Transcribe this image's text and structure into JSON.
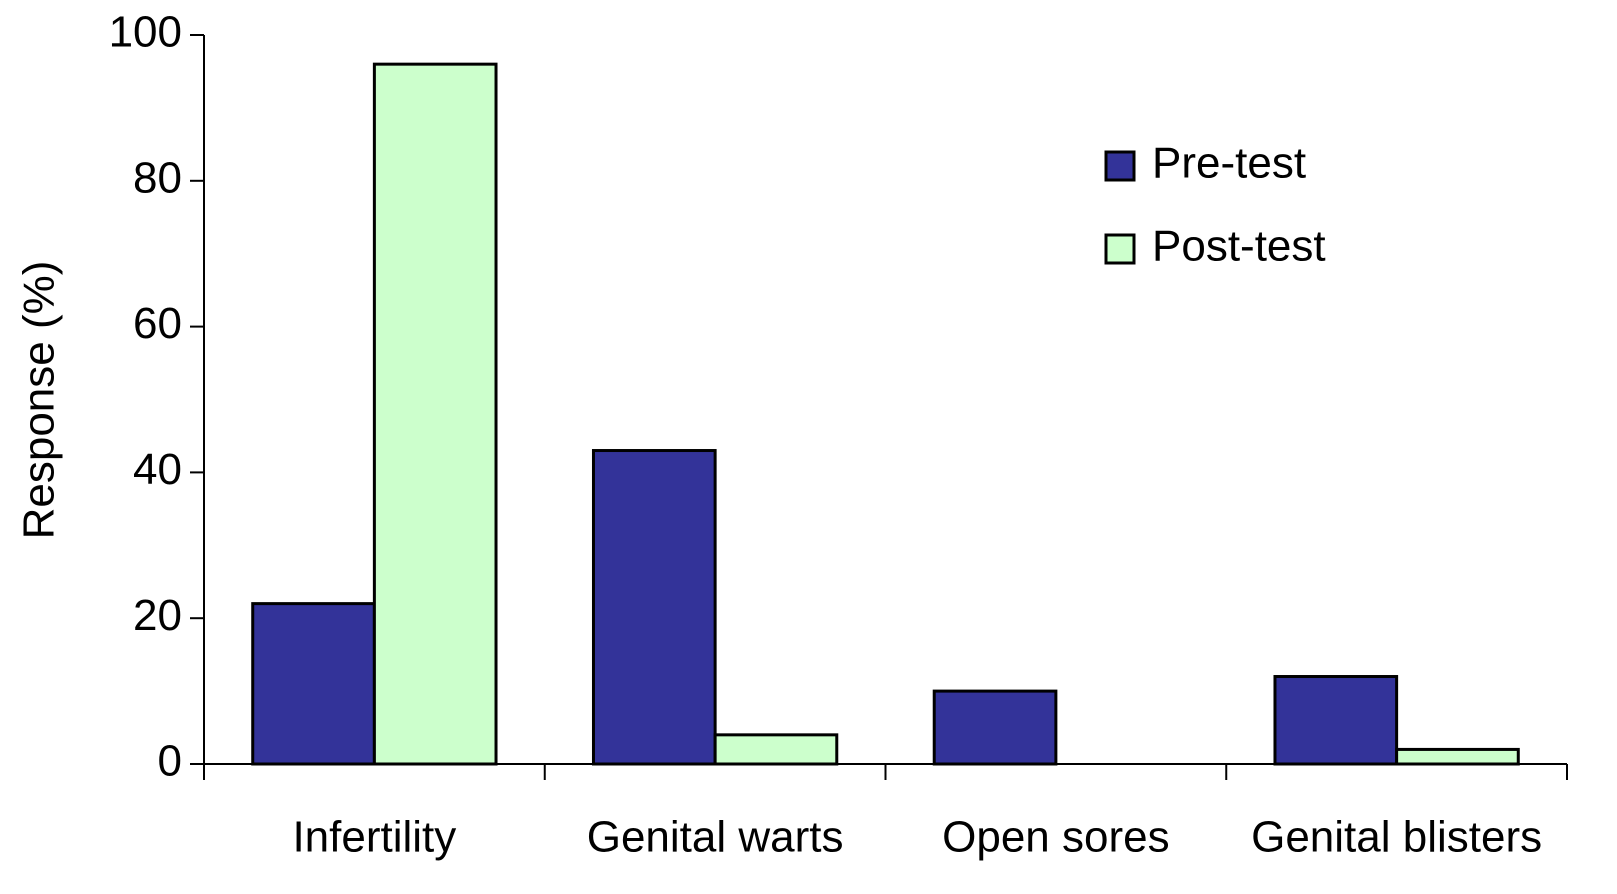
{
  "chart_data": {
    "type": "bar",
    "y_label": "Response (%)",
    "categories": [
      "Infertility",
      "Genital warts",
      "Open sores",
      "Genital blisters"
    ],
    "series": [
      {
        "name": "Pre-test",
        "color": "#333399",
        "values": [
          22,
          43,
          10,
          12
        ]
      },
      {
        "name": "Post-test",
        "color": "#ccffcc",
        "values": [
          96,
          4,
          0,
          2
        ]
      }
    ],
    "ylim": [
      0,
      100
    ],
    "yticks": [
      0,
      20,
      40,
      60,
      80,
      100
    ],
    "grid": false,
    "legend": "top-right"
  }
}
